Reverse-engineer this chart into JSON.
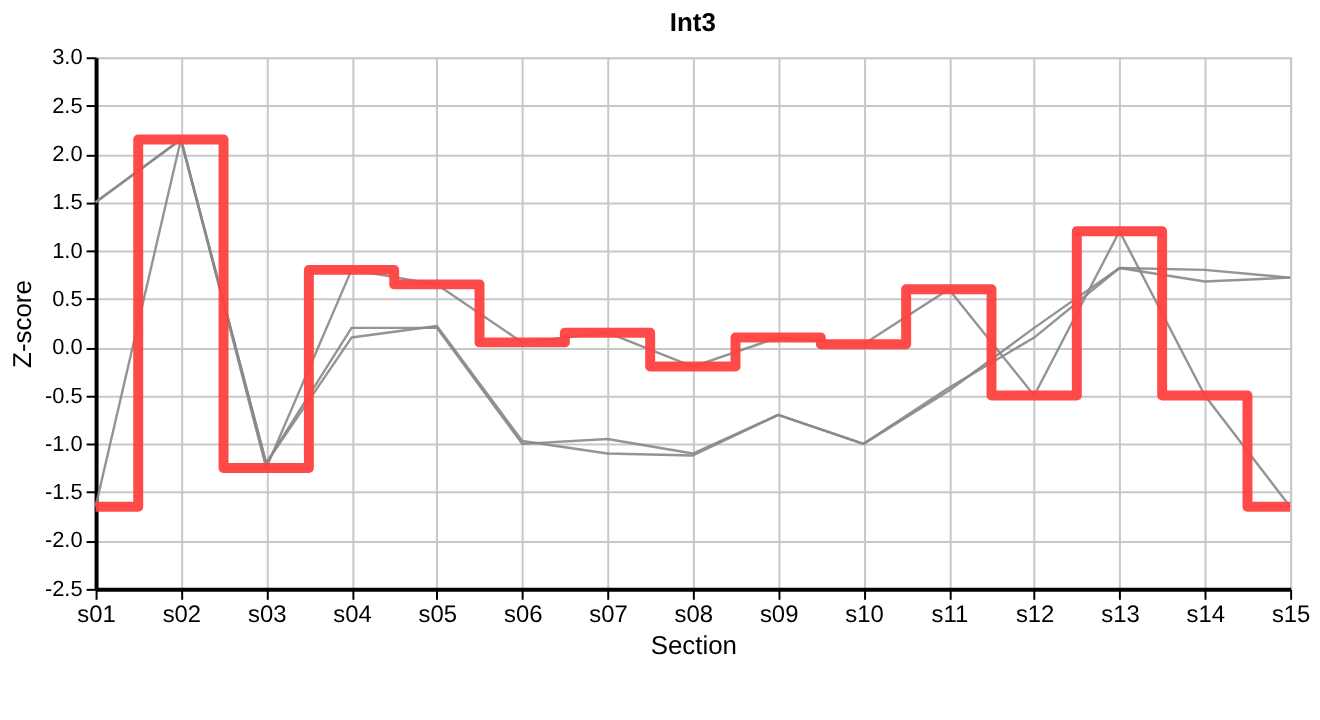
{
  "chart_data": {
    "type": "line",
    "title": "Int3",
    "xlabel": "Section",
    "ylabel": "Z-score",
    "categories": [
      "s01",
      "s02",
      "s03",
      "s04",
      "s05",
      "s06",
      "s07",
      "s08",
      "s09",
      "s10",
      "s11",
      "s12",
      "s13",
      "s14",
      "s15"
    ],
    "ylim": [
      -2.5,
      3.0
    ],
    "yticks": [
      {
        "value": -2.5,
        "label": "-2.5"
      },
      {
        "value": -2,
        "label": "-2.0"
      },
      {
        "value": -1.5,
        "label": "-1.5"
      },
      {
        "value": -1,
        "label": "-1.0"
      },
      {
        "value": -0.5,
        "label": "-0.5"
      },
      {
        "value": 0,
        "label": "0.0"
      },
      {
        "value": 0.5,
        "label": "0.5"
      },
      {
        "value": 1,
        "label": "1.0"
      },
      {
        "value": 1.5,
        "label": "1.5"
      },
      {
        "value": 2,
        "label": "2.0"
      },
      {
        "value": 2.5,
        "label": "2.5"
      },
      {
        "value": 3,
        "label": "3.0"
      }
    ],
    "grid": true,
    "legend": false,
    "series": [
      {
        "type": "line",
        "color": "#888888",
        "values": [
          1.5,
          2.15,
          -1.2,
          0.2,
          0.2,
          -1.0,
          -0.95,
          -1.1,
          -0.7,
          -1.0,
          -0.45,
          0.2,
          0.82,
          0.8,
          0.72
        ]
      },
      {
        "type": "line",
        "color": "#888888",
        "values": [
          1.5,
          2.15,
          -1.2,
          0.1,
          0.22,
          -0.97,
          -1.1,
          -1.12,
          -0.7,
          -1.0,
          -0.42,
          0.1,
          0.82,
          0.68,
          0.72
        ]
      },
      {
        "type": "line",
        "color": "#888888",
        "values": [
          -1.65,
          2.15,
          -1.25,
          0.8,
          0.65,
          0.05,
          0.15,
          -0.2,
          0.1,
          0.03,
          0.6,
          -0.5,
          1.2,
          -0.5,
          -1.65
        ]
      },
      {
        "type": "step",
        "color": "#ff4040",
        "values": [
          -1.65,
          2.15,
          -1.25,
          0.8,
          0.65,
          0.05,
          0.15,
          -0.2,
          0.1,
          0.03,
          0.6,
          -0.5,
          1.2,
          -0.5,
          -1.65
        ]
      }
    ]
  }
}
